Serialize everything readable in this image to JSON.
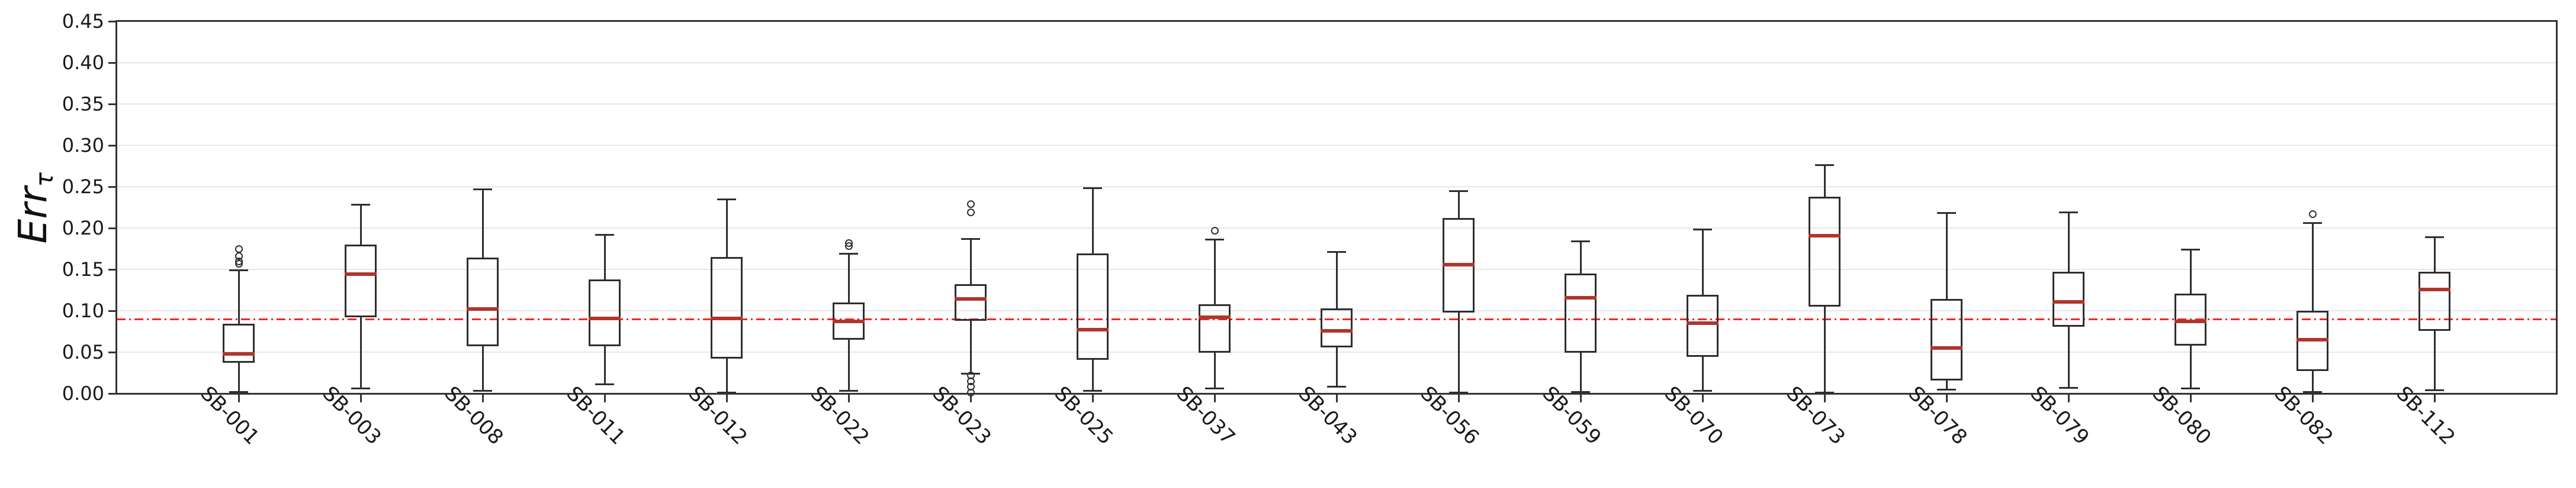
{
  "chart_data": {
    "type": "box",
    "title": "",
    "ylabel_main": "Err",
    "ylabel_sub": "τ",
    "ylim": [
      0,
      0.45
    ],
    "ytick_values": [
      0.0,
      0.05,
      0.1,
      0.15,
      0.2,
      0.25,
      0.3,
      0.35,
      0.4,
      0.45
    ],
    "ytick_labels": [
      "0.00",
      "0.05",
      "0.10",
      "0.15",
      "0.20",
      "0.25",
      "0.30",
      "0.35",
      "0.40",
      "0.45"
    ],
    "grid": true,
    "legend": "none",
    "threshold_line": {
      "y": 0.09,
      "color": "#ef2929",
      "style": "dash-dot"
    },
    "colors": {
      "box_edge": "#2e2e2e",
      "median": "#b0352c",
      "grid": "#e7e7e7",
      "threshold": "#ef2929"
    },
    "categories": [
      "SB-001",
      "SB-003",
      "SB-008",
      "SB-011",
      "SB-012",
      "SB-022",
      "SB-023",
      "SB-025",
      "SB-037",
      "SB-043",
      "SB-056",
      "SB-059",
      "SB-070",
      "SB-073",
      "SB-078",
      "SB-079",
      "SB-080",
      "SB-082",
      "SB-112"
    ],
    "boxes": [
      {
        "label": "SB-001",
        "whisker_low": 0.002,
        "q1": 0.037,
        "median": 0.048,
        "q3": 0.084,
        "whisker_high": 0.149,
        "outliers": [
          0.157,
          0.16,
          0.166,
          0.175
        ]
      },
      {
        "label": "SB-003",
        "whisker_low": 0.006,
        "q1": 0.092,
        "median": 0.144,
        "q3": 0.18,
        "whisker_high": 0.228,
        "outliers": []
      },
      {
        "label": "SB-008",
        "whisker_low": 0.003,
        "q1": 0.057,
        "median": 0.102,
        "q3": 0.164,
        "whisker_high": 0.247,
        "outliers": []
      },
      {
        "label": "SB-011",
        "whisker_low": 0.011,
        "q1": 0.057,
        "median": 0.091,
        "q3": 0.138,
        "whisker_high": 0.192,
        "outliers": []
      },
      {
        "label": "SB-012",
        "whisker_low": 0.001,
        "q1": 0.042,
        "median": 0.091,
        "q3": 0.165,
        "whisker_high": 0.235,
        "outliers": []
      },
      {
        "label": "SB-022",
        "whisker_low": 0.003,
        "q1": 0.065,
        "median": 0.087,
        "q3": 0.11,
        "whisker_high": 0.169,
        "outliers": [
          0.178,
          0.182
        ]
      },
      {
        "label": "SB-023",
        "whisker_low": 0.024,
        "q1": 0.088,
        "median": 0.114,
        "q3": 0.132,
        "whisker_high": 0.187,
        "outliers": [
          0.219,
          0.229,
          0.022,
          0.015,
          0.008,
          0.001
        ]
      },
      {
        "label": "SB-025",
        "whisker_low": 0.003,
        "q1": 0.041,
        "median": 0.077,
        "q3": 0.169,
        "whisker_high": 0.248,
        "outliers": []
      },
      {
        "label": "SB-037",
        "whisker_low": 0.006,
        "q1": 0.049,
        "median": 0.092,
        "q3": 0.108,
        "whisker_high": 0.186,
        "outliers": [
          0.197
        ]
      },
      {
        "label": "SB-043",
        "whisker_low": 0.008,
        "q1": 0.056,
        "median": 0.076,
        "q3": 0.103,
        "whisker_high": 0.171,
        "outliers": []
      },
      {
        "label": "SB-056",
        "whisker_low": 0.001,
        "q1": 0.098,
        "median": 0.156,
        "q3": 0.212,
        "whisker_high": 0.245,
        "outliers": []
      },
      {
        "label": "SB-059",
        "whisker_low": 0.002,
        "q1": 0.049,
        "median": 0.116,
        "q3": 0.145,
        "whisker_high": 0.184,
        "outliers": []
      },
      {
        "label": "SB-070",
        "whisker_low": 0.003,
        "q1": 0.044,
        "median": 0.085,
        "q3": 0.119,
        "whisker_high": 0.198,
        "outliers": []
      },
      {
        "label": "SB-073",
        "whisker_low": 0.001,
        "q1": 0.105,
        "median": 0.191,
        "q3": 0.238,
        "whisker_high": 0.276,
        "outliers": []
      },
      {
        "label": "SB-078",
        "whisker_low": 0.005,
        "q1": 0.016,
        "median": 0.055,
        "q3": 0.114,
        "whisker_high": 0.218,
        "outliers": []
      },
      {
        "label": "SB-079",
        "whisker_low": 0.007,
        "q1": 0.081,
        "median": 0.111,
        "q3": 0.147,
        "whisker_high": 0.219,
        "outliers": []
      },
      {
        "label": "SB-080",
        "whisker_low": 0.006,
        "q1": 0.058,
        "median": 0.087,
        "q3": 0.121,
        "whisker_high": 0.174,
        "outliers": []
      },
      {
        "label": "SB-082",
        "whisker_low": 0.002,
        "q1": 0.027,
        "median": 0.065,
        "q3": 0.1,
        "whisker_high": 0.206,
        "outliers": [
          0.217
        ]
      },
      {
        "label": "SB-112",
        "whisker_low": 0.004,
        "q1": 0.076,
        "median": 0.126,
        "q3": 0.147,
        "whisker_high": 0.189,
        "outliers": []
      }
    ]
  }
}
